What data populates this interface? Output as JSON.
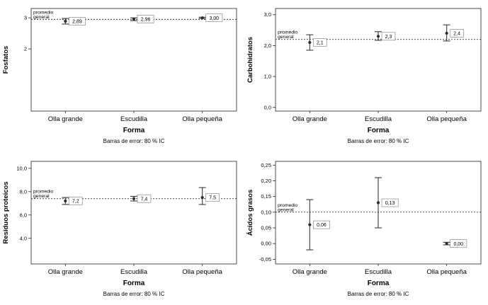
{
  "page": {
    "background": "#ffffff"
  },
  "colors": {
    "frame": "#222222",
    "text": "#000000",
    "whisker": "#3a3a3a",
    "point": "#2b2b2b",
    "ref_line": "#333333",
    "box_border": "#888888",
    "box_fill": "#ffffff"
  },
  "chart_data": [
    {
      "type": "errorbar",
      "ylabel": "Fosfatos",
      "xlabel": "Forma",
      "caption": "Barras de error: 80 % IC",
      "categories": [
        "Olla grande",
        "Escudilla",
        "Olla pequeña"
      ],
      "ylim": [
        0,
        3.3
      ],
      "yticks": [
        {
          "value": 3,
          "label": "3"
        },
        {
          "value": 2,
          "label": "2"
        }
      ],
      "ref_line": {
        "value": 2.95,
        "label_lines": [
          "promedio",
          "general"
        ]
      },
      "points": [
        {
          "category": "Olla grande",
          "mean": 2.89,
          "label": "2,89",
          "ci_low": 2.8,
          "ci_high": 2.98
        },
        {
          "category": "Escudilla",
          "mean": 2.96,
          "label": "2,96",
          "ci_low": 2.91,
          "ci_high": 3.0
        },
        {
          "category": "Olla pequeña",
          "mean": 3.0,
          "label": "3,00",
          "ci_low": 2.98,
          "ci_high": 3.02
        }
      ]
    },
    {
      "type": "errorbar",
      "ylabel": "Carbohidratos",
      "xlabel": "Forma",
      "caption": "Barras de error: 80 % IC",
      "categories": [
        "Olla grande",
        "Escudilla",
        "Olla pequeña"
      ],
      "ylim": [
        -0.12,
        3.2
      ],
      "yticks": [
        {
          "value": 3.0,
          "label": "3,0"
        },
        {
          "value": 2.0,
          "label": "2,0"
        },
        {
          "value": 1.0,
          "label": "1,0"
        },
        {
          "value": 0.0,
          "label": "0,0"
        }
      ],
      "ref_line": {
        "value": 2.2,
        "label_lines": [
          "promedio",
          "general"
        ]
      },
      "points": [
        {
          "category": "Olla grande",
          "mean": 2.1,
          "label": "2,1",
          "ci_low": 1.85,
          "ci_high": 2.35
        },
        {
          "category": "Escudilla",
          "mean": 2.3,
          "label": "2,3",
          "ci_low": 2.17,
          "ci_high": 2.45
        },
        {
          "category": "Olla pequeña",
          "mean": 2.4,
          "label": "2,4",
          "ci_low": 2.15,
          "ci_high": 2.67
        }
      ]
    },
    {
      "type": "errorbar",
      "ylabel": "Residuos proteicos",
      "xlabel": "Forma",
      "caption": "Barras de error: 80 % IC",
      "categories": [
        "Olla grande",
        "Escudilla",
        "Olla pequeña"
      ],
      "ylim": [
        1.8,
        10.6
      ],
      "yticks": [
        {
          "value": 10.0,
          "label": "10,0"
        },
        {
          "value": 8.0,
          "label": "8,0"
        },
        {
          "value": 6.0,
          "label": "6,0"
        },
        {
          "value": 4.0,
          "label": "4,0"
        }
      ],
      "ref_line": {
        "value": 7.4,
        "label_lines": [
          "promedio",
          "general"
        ]
      },
      "points": [
        {
          "category": "Olla grande",
          "mean": 7.2,
          "label": "7,2",
          "ci_low": 6.9,
          "ci_high": 7.5
        },
        {
          "category": "Escudilla",
          "mean": 7.4,
          "label": "7,4",
          "ci_low": 7.2,
          "ci_high": 7.6
        },
        {
          "category": "Olla pequeña",
          "mean": 7.5,
          "label": "7,5",
          "ci_low": 6.9,
          "ci_high": 8.35
        }
      ]
    },
    {
      "type": "errorbar",
      "ylabel": "Ácidos grasos",
      "xlabel": "Forma",
      "caption": "Barras de error: 80 % IC",
      "categories": [
        "Olla grande",
        "Escudilla",
        "Olla pequeña"
      ],
      "ylim": [
        -0.065,
        0.262
      ],
      "yticks": [
        {
          "value": 0.25,
          "label": "0,25"
        },
        {
          "value": 0.2,
          "label": "0,20"
        },
        {
          "value": 0.15,
          "label": "0,15"
        },
        {
          "value": 0.1,
          "label": "0,10"
        },
        {
          "value": 0.05,
          "label": "0,05"
        },
        {
          "value": 0.0,
          "label": "0,00"
        },
        {
          "value": -0.05,
          "label": "-0,05"
        }
      ],
      "ref_line": {
        "value": 0.1,
        "label_lines": [
          "promedio",
          "general"
        ]
      },
      "points": [
        {
          "category": "Olla grande",
          "mean": 0.06,
          "label": "0,06",
          "ci_low": -0.02,
          "ci_high": 0.14
        },
        {
          "category": "Escudilla",
          "mean": 0.13,
          "label": "0,13",
          "ci_low": 0.05,
          "ci_high": 0.21
        },
        {
          "category": "Olla pequeña",
          "mean": 0.0,
          "label": "0,00",
          "ci_low": -0.004,
          "ci_high": 0.004
        }
      ]
    }
  ]
}
